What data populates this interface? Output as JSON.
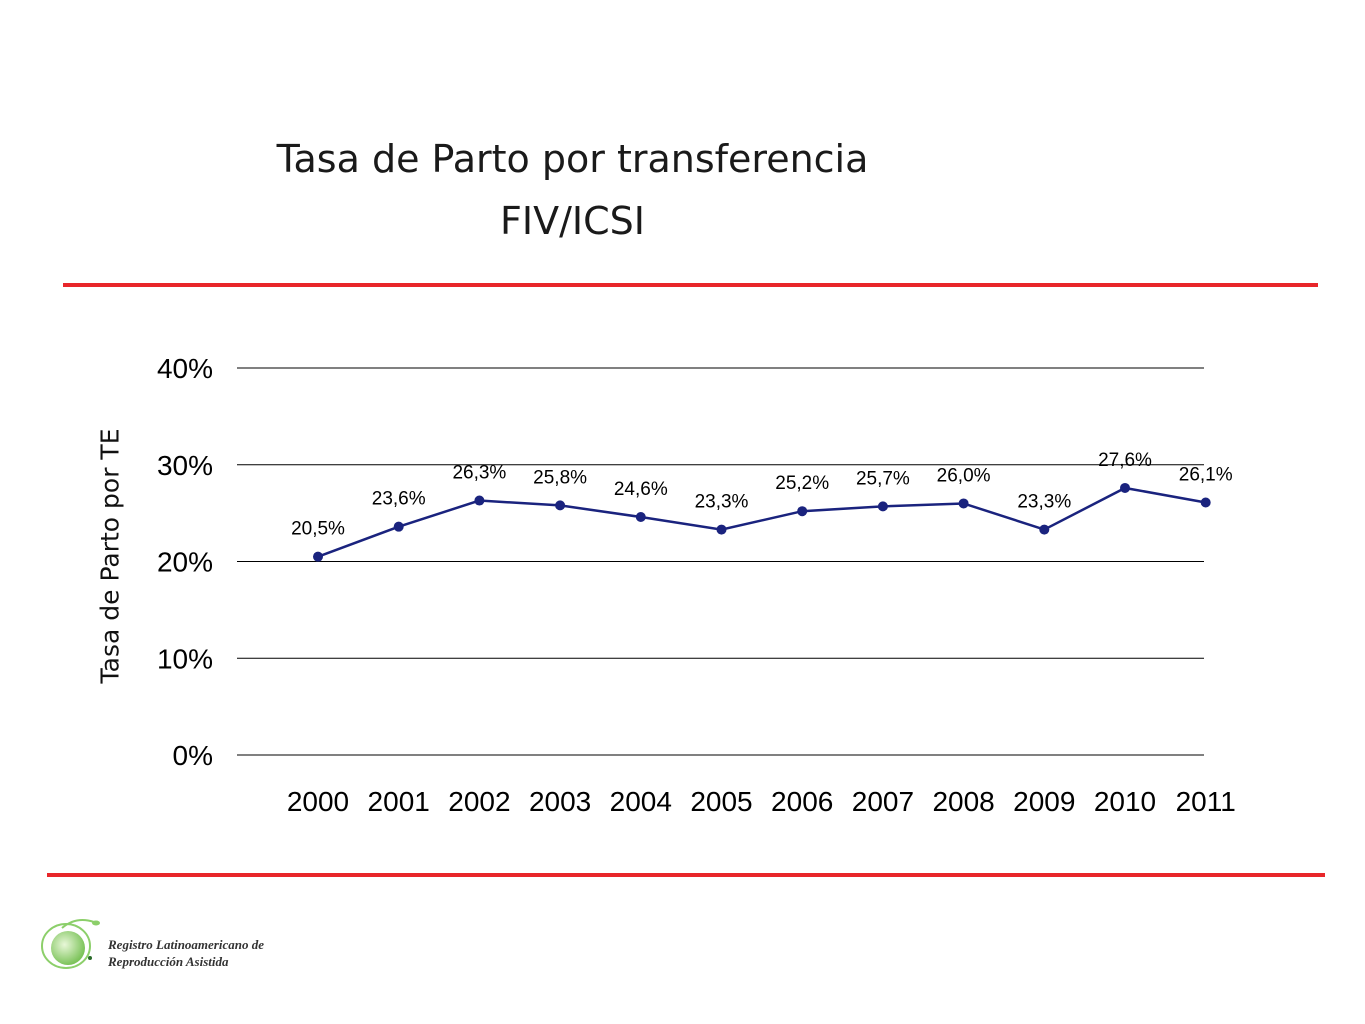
{
  "slide": {
    "title_line1": "Tasa de Parto por transferencia",
    "title_line2": "FIV/ICSI",
    "rule_color": "#e8262a"
  },
  "logo": {
    "line1": "Registro Latinoamericano de",
    "line2": "Reproducción Asistida"
  },
  "chart_data": {
    "type": "line",
    "title": "",
    "xlabel": "",
    "ylabel": "Tasa de Parto por TE",
    "ylim": [
      0,
      40
    ],
    "yticks": [
      "0%",
      "10%",
      "20%",
      "30%",
      "40%"
    ],
    "ytick_values": [
      0,
      10,
      20,
      30,
      40
    ],
    "grid": true,
    "categories": [
      "2000",
      "2001",
      "2002",
      "2003",
      "2004",
      "2005",
      "2006",
      "2007",
      "2008",
      "2009",
      "2010",
      "2011"
    ],
    "series": [
      {
        "color": "#1a237e",
        "values": [
          20.5,
          23.6,
          26.3,
          25.8,
          24.6,
          23.3,
          25.2,
          25.7,
          26.0,
          23.3,
          27.6,
          26.1
        ],
        "labels": [
          "20,5%",
          "23,6%",
          "26,3%",
          "25,8%",
          "24,6%",
          "23,3%",
          "25,2%",
          "25,7%",
          "26,0%",
          "23,3%",
          "27,6%",
          "26,1%"
        ]
      }
    ]
  }
}
